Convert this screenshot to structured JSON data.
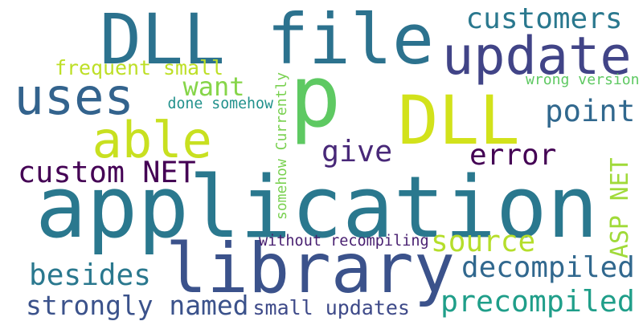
{
  "words": [
    {
      "text": "application",
      "color": "#2a788e",
      "orientation": "horizontal"
    },
    {
      "text": "library",
      "color": "#3b528b",
      "orientation": "horizontal"
    },
    {
      "text": "DLL file",
      "color": "#2c728e",
      "orientation": "horizontal"
    },
    {
      "text": "p",
      "color": "#5ec962",
      "orientation": "horizontal"
    },
    {
      "text": "DLL",
      "color": "#d2e21b",
      "orientation": "horizontal"
    },
    {
      "text": "update",
      "color": "#414487",
      "orientation": "horizontal"
    },
    {
      "text": "uses",
      "color": "#33638d",
      "orientation": "horizontal"
    },
    {
      "text": "able",
      "color": "#c8e020",
      "orientation": "horizontal"
    },
    {
      "text": "customers",
      "color": "#2a788e",
      "orientation": "horizontal"
    },
    {
      "text": "point",
      "color": "#31688e",
      "orientation": "horizontal"
    },
    {
      "text": "want",
      "color": "#86d549",
      "orientation": "horizontal"
    },
    {
      "text": "give",
      "color": "#482878",
      "orientation": "horizontal"
    },
    {
      "text": "error",
      "color": "#440154",
      "orientation": "horizontal"
    },
    {
      "text": "custom NET",
      "color": "#440154",
      "orientation": "horizontal"
    },
    {
      "text": "ASP NET",
      "color": "#a0da39",
      "orientation": "vertical"
    },
    {
      "text": "source",
      "color": "#b5de2b",
      "orientation": "horizontal"
    },
    {
      "text": "decompiled",
      "color": "#31688e",
      "orientation": "horizontal"
    },
    {
      "text": "besides",
      "color": "#2a788e",
      "orientation": "horizontal"
    },
    {
      "text": "precompiled",
      "color": "#1f9e89",
      "orientation": "horizontal"
    },
    {
      "text": "strongly named",
      "color": "#3b528b",
      "orientation": "horizontal"
    },
    {
      "text": "small updates",
      "color": "#3e4a89",
      "orientation": "horizontal"
    },
    {
      "text": "without recompiling",
      "color": "#481f70",
      "orientation": "horizontal"
    },
    {
      "text": "frequent small",
      "color": "#bddf26",
      "orientation": "horizontal"
    },
    {
      "text": "done somehow",
      "color": "#21918c",
      "orientation": "horizontal"
    },
    {
      "text": "wrong version",
      "color": "#5ec962",
      "orientation": "horizontal"
    },
    {
      "text": "somehow Currently",
      "color": "#7ad151",
      "orientation": "vertical"
    }
  ]
}
